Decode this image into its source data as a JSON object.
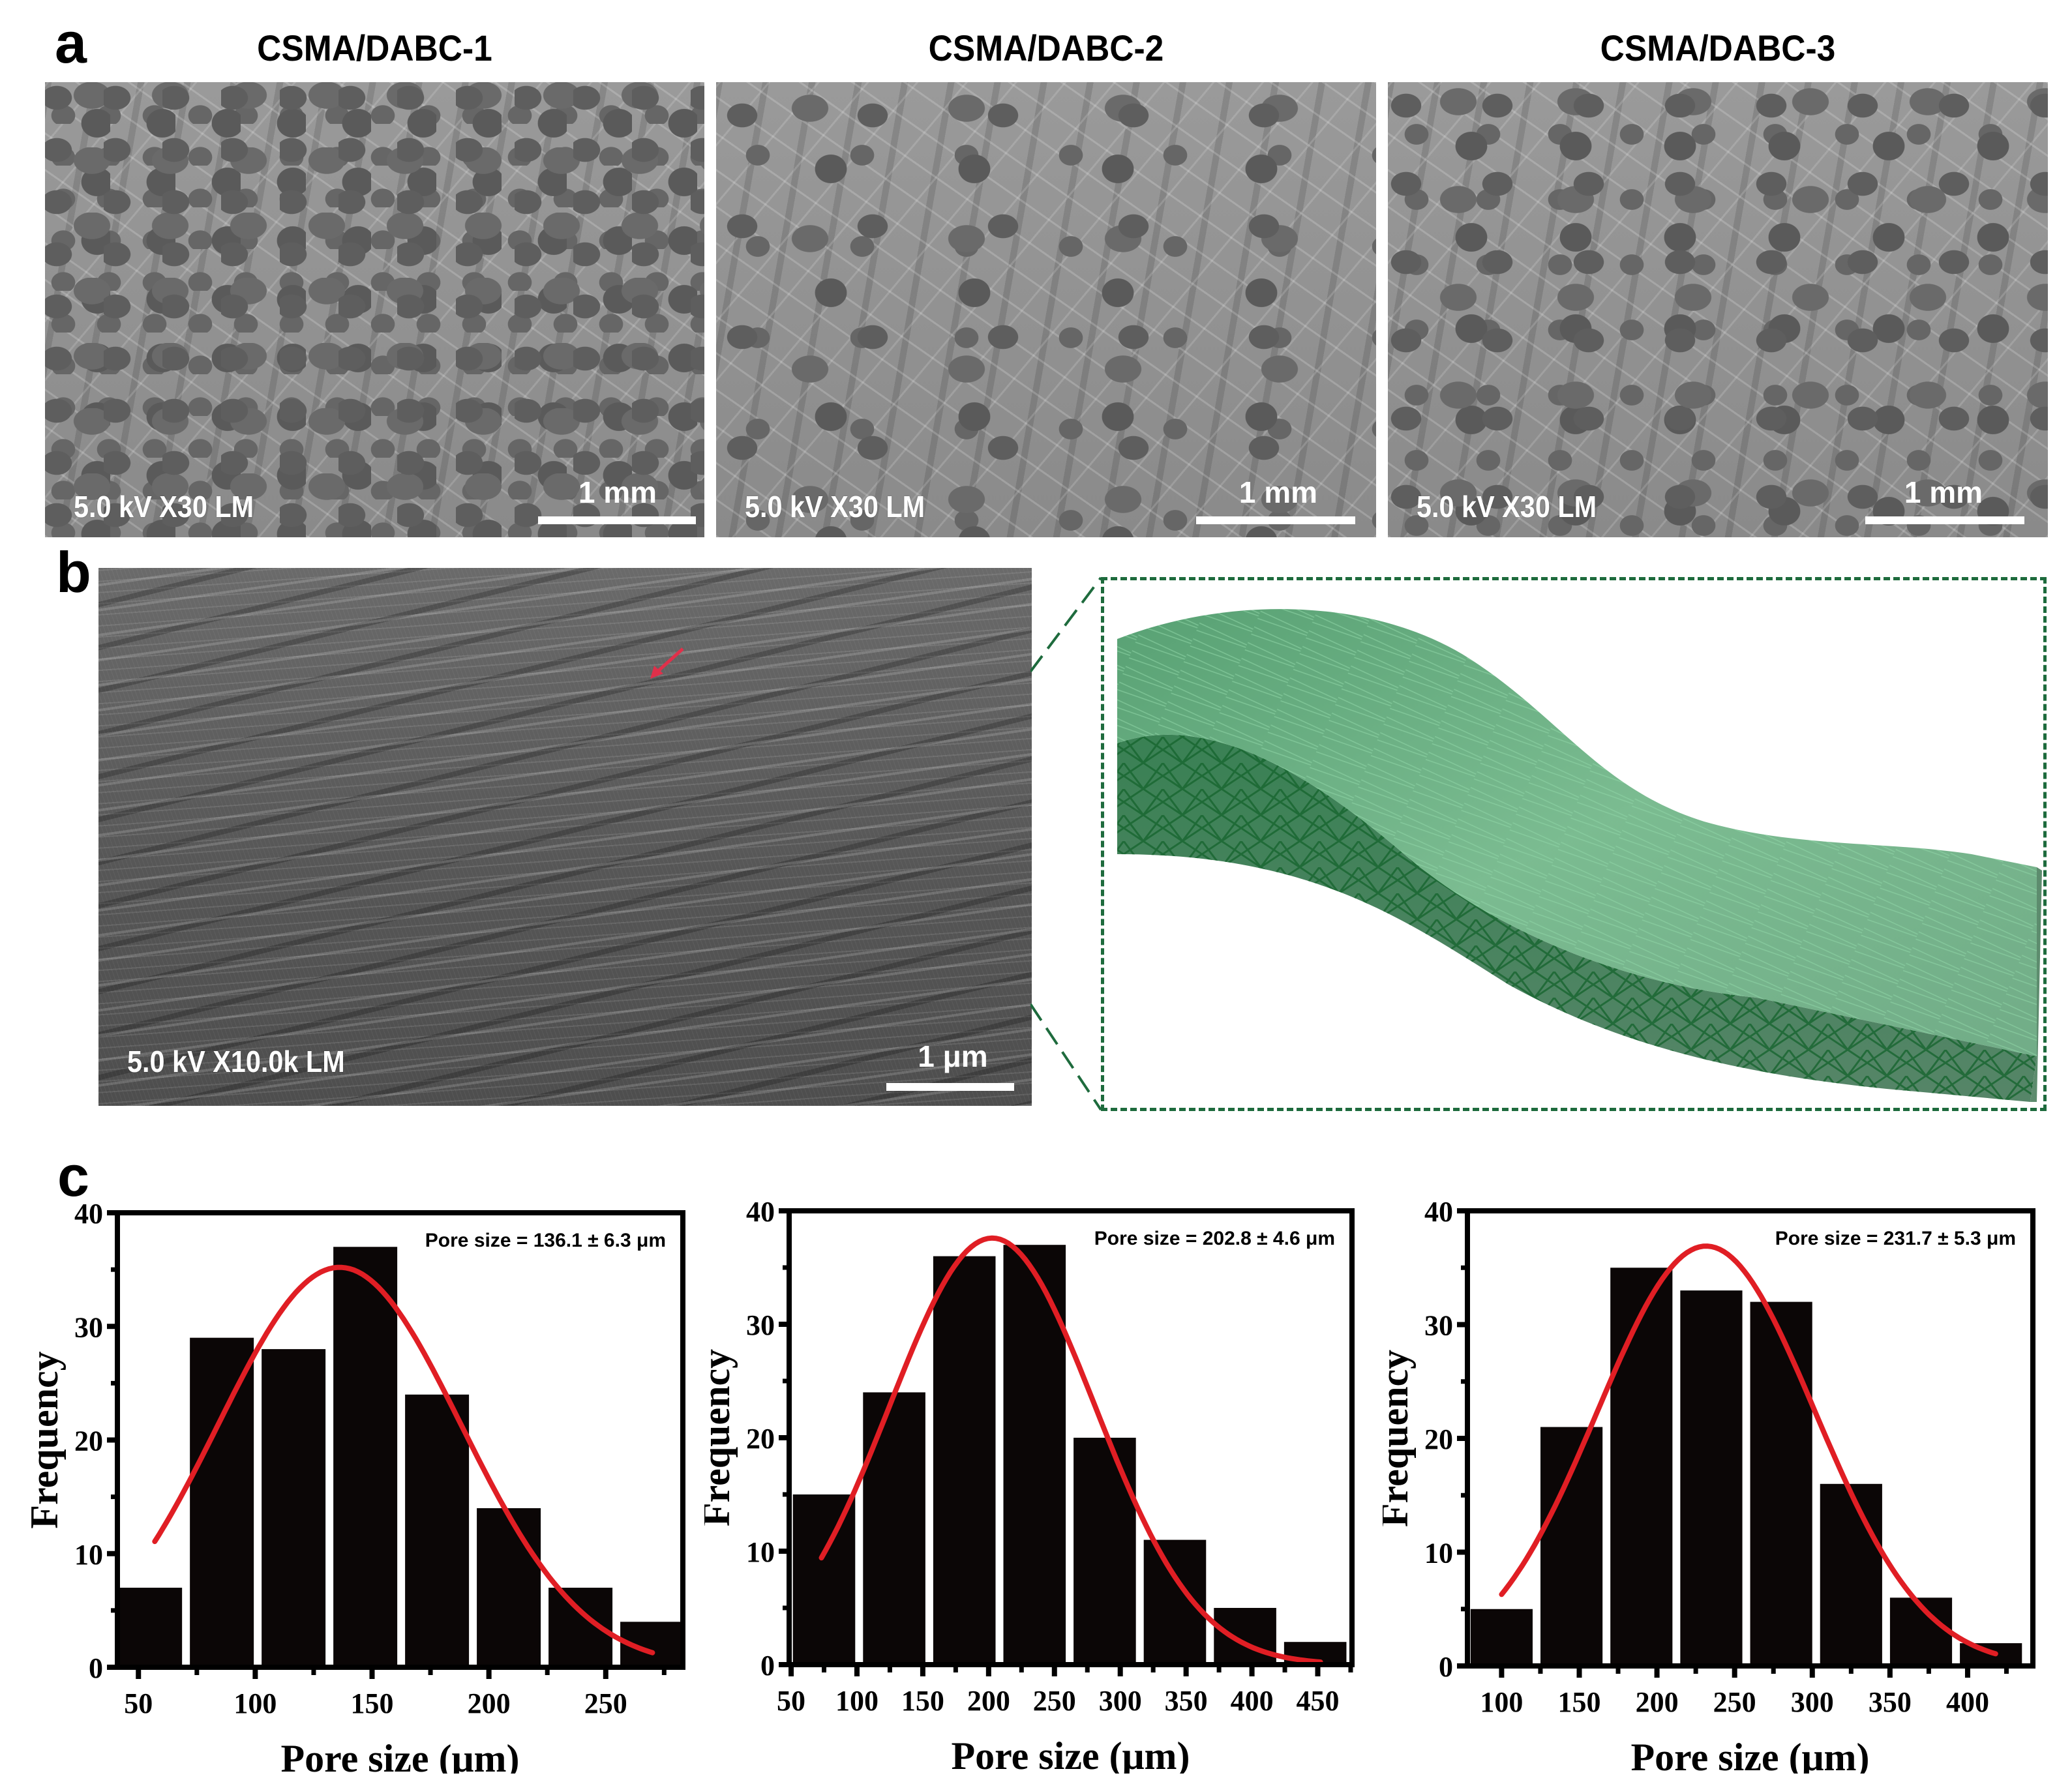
{
  "figure": {
    "panel_labels": {
      "a": "a",
      "b": "b",
      "c": "c"
    },
    "colors": {
      "bar": "#0b0606",
      "fit_curve": "#e01e24",
      "dashed_box": "#1e6b3d",
      "sheet_green": "#3f9a63"
    }
  },
  "panel_a": {
    "images": [
      {
        "title": "CSMA/DABC-1",
        "sem_info": "5.0 kV X30 LM",
        "scale_label": "1 mm"
      },
      {
        "title": "CSMA/DABC-2",
        "sem_info": "5.0 kV X30 LM",
        "scale_label": "1 mm"
      },
      {
        "title": "CSMA/DABC-3",
        "sem_info": "5.0 kV X30 LM",
        "scale_label": "1 mm"
      }
    ]
  },
  "panel_b": {
    "sem_info": "5.0 kV X10.0k LM",
    "scale_label": "1 μm",
    "model_description": "3D schematic of fibrous network sheet (green)"
  },
  "chart_data": [
    {
      "type": "bar",
      "title": "",
      "annotation": "Pore size = 136.1 ± 6.3 μm",
      "xlabel": "Pore size (μm)",
      "ylabel": "Frequency",
      "xlim": [
        41,
        283
      ],
      "ylim": [
        0,
        40
      ],
      "xticks": [
        50,
        100,
        150,
        200,
        250
      ],
      "yticks": [
        0,
        10,
        20,
        30,
        40
      ],
      "bin_width": 30.7,
      "bin_centers": [
        55,
        85.7,
        116.4,
        147.1,
        177.8,
        208.5,
        239.2,
        269.9
      ],
      "values": [
        7,
        29,
        28,
        37,
        24,
        14,
        7,
        4
      ],
      "fit": {
        "type": "gaussian",
        "mean": 136.1,
        "peak": 35.2,
        "sigma": 52,
        "x_start": 57,
        "x_end": 270
      }
    },
    {
      "type": "bar",
      "title": "",
      "annotation": "Pore size = 202.8 ± 4.6 μm",
      "xlabel": "Pore size (μm)",
      "ylabel": "Frequency",
      "xlim": [
        48.5,
        476
      ],
      "ylim": [
        0,
        40
      ],
      "xticks": [
        50,
        100,
        150,
        200,
        250,
        300,
        350,
        400,
        450
      ],
      "yticks": [
        0,
        10,
        20,
        30,
        40
      ],
      "bin_width": 53.3,
      "bin_centers": [
        75,
        128.3,
        181.6,
        234.9,
        288.2,
        341.5,
        394.8,
        448.1
      ],
      "values": [
        15,
        24,
        36,
        37,
        20,
        11,
        5,
        2
      ],
      "fit": {
        "type": "gaussian",
        "mean": 202.8,
        "peak": 37.6,
        "sigma": 78,
        "x_start": 73,
        "x_end": 452
      }
    },
    {
      "type": "bar",
      "title": "",
      "annotation": "Pore size = 231.7 ± 5.3 μm",
      "xlabel": "Pore size (μm)",
      "ylabel": "Frequency",
      "xlim": [
        78,
        442
      ],
      "ylim": [
        0,
        40
      ],
      "xticks": [
        100,
        150,
        200,
        250,
        300,
        350,
        400
      ],
      "yticks": [
        0,
        10,
        20,
        30,
        40
      ],
      "bin_width": 45,
      "bin_centers": [
        100,
        145,
        190,
        235,
        280,
        325,
        370,
        415
      ],
      "values": [
        5,
        21,
        35,
        33,
        32,
        16,
        6,
        2
      ],
      "fit": {
        "type": "gaussian",
        "mean": 231.7,
        "peak": 36.9,
        "sigma": 70,
        "x_start": 100,
        "x_end": 418
      }
    }
  ]
}
